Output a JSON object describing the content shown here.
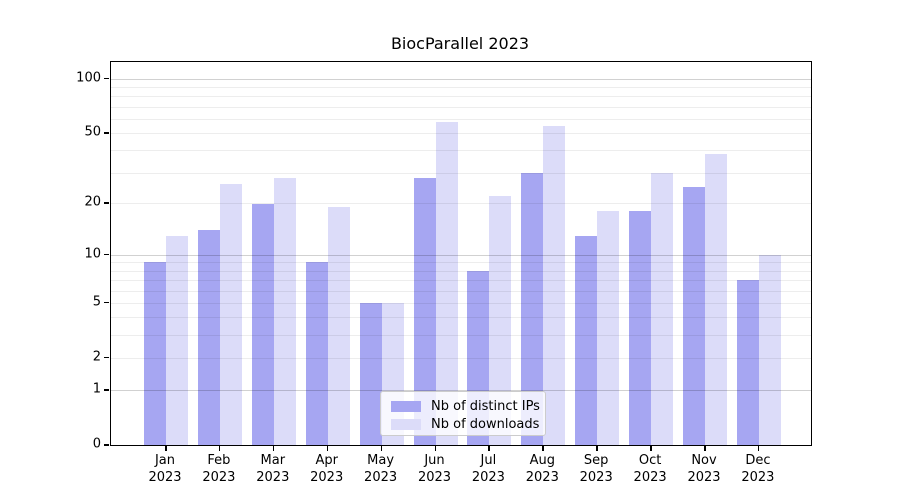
{
  "chart_data": {
    "type": "bar",
    "title": "BiocParallel 2023",
    "categories": [
      "Jan",
      "Feb",
      "Mar",
      "Apr",
      "May",
      "Jun",
      "Jul",
      "Aug",
      "Sep",
      "Oct",
      "Nov",
      "Dec"
    ],
    "x_tick_year": "2023",
    "series": [
      {
        "name": "Nb of distinct IPs",
        "color": "#a6a6f2",
        "values": [
          9,
          14,
          20,
          9,
          5,
          28,
          8,
          30,
          13,
          18,
          25,
          7
        ]
      },
      {
        "name": "Nb of downloads",
        "color": "#dcdcf9",
        "values": [
          13,
          26,
          28,
          19,
          5,
          58,
          22,
          55,
          18,
          30,
          38,
          10
        ]
      }
    ],
    "xlabel": "",
    "ylabel": "",
    "scale": "log1p",
    "ylim": [
      0,
      124
    ],
    "y_ticks": [
      0,
      1,
      2,
      5,
      10,
      20,
      50,
      100
    ],
    "grid": {
      "minor_values": [
        2,
        3,
        4,
        5,
        6,
        7,
        8,
        9,
        20,
        30,
        40,
        50,
        60,
        70,
        80,
        90
      ],
      "major_values": [
        1,
        10,
        100
      ],
      "drawn_over_bars": true
    },
    "legend": {
      "position": "bottom-center"
    }
  },
  "colors": {
    "grid_minor": "rgba(0,0,0,0.07)",
    "grid_major": "rgba(0,0,0,0.18)",
    "axis": "#000000",
    "text": "#000000",
    "legend_border": "#cccccc"
  }
}
